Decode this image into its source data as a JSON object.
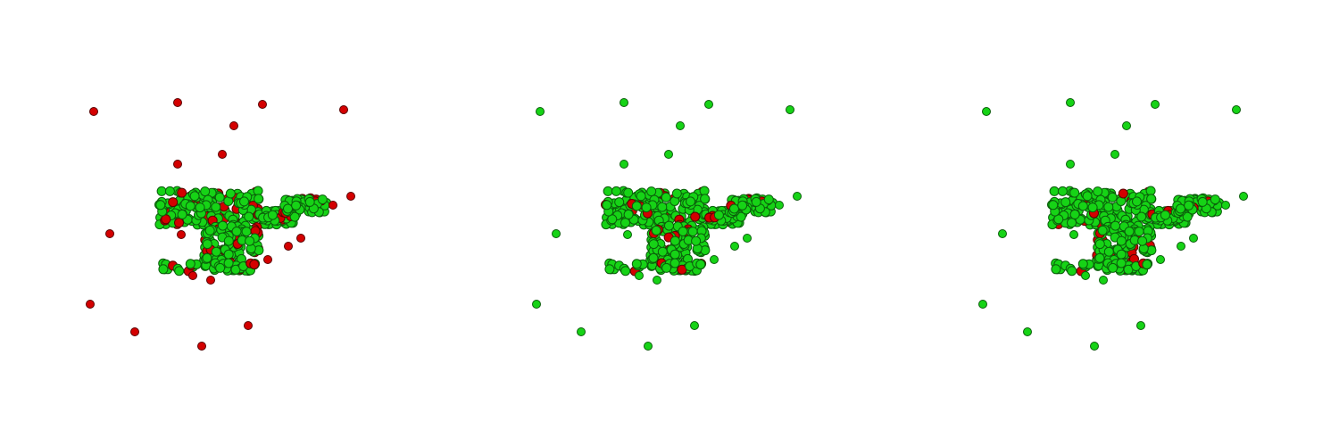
{
  "colors": {
    "background": "#ffffff",
    "inlier_fill": "#16d316",
    "inlier_stroke": "#0b5e0b",
    "outlier_fill": "#d40000",
    "outlier_stroke": "#5a0000"
  },
  "panels": [
    {
      "id": "panel-1",
      "isolated_point_color": "red"
    },
    {
      "id": "panel-2",
      "isolated_point_color": "green"
    },
    {
      "id": "panel-3",
      "isolated_point_color": "green"
    }
  ]
}
